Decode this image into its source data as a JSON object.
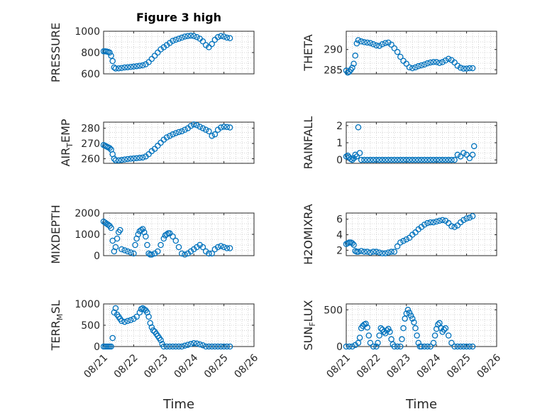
{
  "title": "Figure 3 high",
  "marker_color": "#0072BD",
  "xtick_labels": [
    "08/21",
    "08/22",
    "08/23",
    "08/24",
    "08/25",
    "08/26"
  ],
  "xlabel": "Time",
  "chart_data": [
    {
      "type": "scatter",
      "ylabel": "PRESSURE",
      "yticks": [
        "600",
        "800",
        "1000"
      ],
      "ylim": [
        600,
        1000
      ],
      "xlim": [
        0,
        5
      ],
      "x": [
        0.0,
        0.05,
        0.1,
        0.15,
        0.2,
        0.25,
        0.3,
        0.35,
        0.4,
        0.5,
        0.6,
        0.7,
        0.8,
        0.9,
        1.0,
        1.1,
        1.2,
        1.3,
        1.4,
        1.5,
        1.6,
        1.7,
        1.8,
        1.9,
        2.0,
        2.1,
        2.2,
        2.3,
        2.4,
        2.5,
        2.6,
        2.7,
        2.8,
        2.9,
        3.0,
        3.1,
        3.2,
        3.3,
        3.4,
        3.5,
        3.6,
        3.7,
        3.8,
        3.9,
        4.0,
        4.1,
        4.2
      ],
      "y": [
        812,
        812,
        810,
        806,
        800,
        770,
        720,
        660,
        650,
        652,
        655,
        660,
        662,
        665,
        668,
        672,
        676,
        680,
        690,
        710,
        740,
        770,
        800,
        830,
        850,
        870,
        890,
        910,
        920,
        930,
        940,
        950,
        955,
        958,
        955,
        945,
        930,
        905,
        870,
        850,
        880,
        920,
        945,
        955,
        950,
        940,
        935
      ]
    },
    {
      "type": "scatter",
      "ylabel": "THETA",
      "yticks": [
        "285",
        "290"
      ],
      "ylim": [
        284,
        294.5
      ],
      "xlim": [
        0,
        5
      ],
      "x": [
        0.0,
        0.05,
        0.1,
        0.15,
        0.2,
        0.25,
        0.3,
        0.35,
        0.4,
        0.5,
        0.6,
        0.7,
        0.8,
        0.9,
        1.0,
        1.1,
        1.2,
        1.3,
        1.4,
        1.5,
        1.6,
        1.7,
        1.8,
        1.9,
        2.0,
        2.1,
        2.2,
        2.3,
        2.4,
        2.5,
        2.6,
        2.7,
        2.8,
        2.9,
        3.0,
        3.1,
        3.2,
        3.3,
        3.4,
        3.5,
        3.6,
        3.7,
        3.8,
        3.9,
        4.0,
        4.1,
        4.2
      ],
      "y": [
        284.8,
        284.3,
        284.5,
        285.0,
        285.5,
        286.5,
        288.5,
        291.5,
        292.3,
        292.0,
        291.8,
        291.7,
        291.6,
        291.3,
        291.0,
        290.9,
        291.3,
        291.6,
        291.7,
        291.2,
        290.3,
        289.4,
        288.2,
        287.2,
        286.5,
        285.6,
        285.4,
        285.6,
        285.9,
        286.1,
        286.3,
        286.6,
        286.8,
        286.9,
        286.9,
        286.7,
        286.9,
        287.3,
        287.7,
        287.4,
        286.8,
        286.0,
        285.5,
        285.3,
        285.3,
        285.4,
        285.4
      ]
    },
    {
      "type": "scatter",
      "ylabel": "AIR_TEMP",
      "yticks": [
        "260",
        "270",
        "280"
      ],
      "ylim": [
        257,
        284
      ],
      "xlim": [
        0,
        5
      ],
      "x": [
        0.0,
        0.05,
        0.1,
        0.15,
        0.2,
        0.25,
        0.3,
        0.35,
        0.4,
        0.5,
        0.6,
        0.7,
        0.8,
        0.9,
        1.0,
        1.1,
        1.2,
        1.3,
        1.4,
        1.5,
        1.6,
        1.7,
        1.8,
        1.9,
        2.0,
        2.1,
        2.2,
        2.3,
        2.4,
        2.5,
        2.6,
        2.7,
        2.8,
        2.9,
        3.0,
        3.1,
        3.2,
        3.3,
        3.4,
        3.5,
        3.6,
        3.7,
        3.8,
        3.9,
        4.0,
        4.1,
        4.2
      ],
      "y": [
        269,
        268.5,
        268,
        267.5,
        267,
        266,
        263,
        260,
        259,
        259,
        259.2,
        259.5,
        259.8,
        260,
        260.2,
        260.4,
        260.6,
        260.8,
        261.5,
        263,
        265,
        266.5,
        268.5,
        270.5,
        272.5,
        274,
        275,
        276,
        276.8,
        277.5,
        278,
        279,
        280,
        281.5,
        282.5,
        282,
        281,
        280,
        279,
        278,
        275,
        276,
        279,
        280.5,
        281,
        280.8,
        280.5
      ]
    },
    {
      "type": "scatter",
      "ylabel": "RAINFALL",
      "yticks": [
        "0",
        "1",
        "2"
      ],
      "ylim": [
        -0.2,
        2.2
      ],
      "xlim": [
        0,
        5
      ],
      "x": [
        0.0,
        0.05,
        0.1,
        0.15,
        0.2,
        0.25,
        0.3,
        0.35,
        0.4,
        0.45,
        0.5,
        0.6,
        0.7,
        0.8,
        0.9,
        1.0,
        1.1,
        1.2,
        1.3,
        1.4,
        1.5,
        1.6,
        1.7,
        1.8,
        1.9,
        2.0,
        2.1,
        2.2,
        2.3,
        2.4,
        2.5,
        2.6,
        2.7,
        2.8,
        2.9,
        3.0,
        3.1,
        3.2,
        3.3,
        3.4,
        3.5,
        3.6,
        3.7,
        3.8,
        3.9,
        4.0,
        4.1,
        4.2,
        4.25
      ],
      "y": [
        0.2,
        0.25,
        0.15,
        0.05,
        0,
        0.1,
        0.3,
        0.2,
        1.9,
        0.4,
        0,
        0,
        0,
        0,
        0,
        0,
        0,
        0,
        0,
        0,
        0,
        0,
        0,
        0,
        0,
        0,
        0,
        0,
        0,
        0,
        0,
        0,
        0,
        0,
        0,
        0,
        0,
        0,
        0,
        0,
        0,
        0,
        0.3,
        0.2,
        0.4,
        0.3,
        0.1,
        0.3,
        0.8
      ]
    },
    {
      "type": "scatter",
      "ylabel": "MIXDEPTH",
      "yticks": [
        "0",
        "1000",
        "2000"
      ],
      "ylim": [
        0,
        2000
      ],
      "xlim": [
        0,
        5
      ],
      "x": [
        0.0,
        0.05,
        0.1,
        0.15,
        0.2,
        0.25,
        0.3,
        0.35,
        0.4,
        0.45,
        0.5,
        0.55,
        0.6,
        0.7,
        0.8,
        0.9,
        1.0,
        1.05,
        1.1,
        1.15,
        1.2,
        1.25,
        1.3,
        1.35,
        1.4,
        1.45,
        1.5,
        1.55,
        1.6,
        1.7,
        1.8,
        1.9,
        2.0,
        2.05,
        2.1,
        2.15,
        2.2,
        2.3,
        2.4,
        2.5,
        2.6,
        2.7,
        2.8,
        2.9,
        3.0,
        3.1,
        3.2,
        3.3,
        3.4,
        3.5,
        3.6,
        3.7,
        3.8,
        3.9,
        4.0,
        4.1,
        4.2
      ],
      "y": [
        1600,
        1550,
        1500,
        1450,
        1400,
        1300,
        700,
        200,
        400,
        800,
        1100,
        1200,
        300,
        250,
        200,
        150,
        100,
        500,
        800,
        1000,
        1150,
        1200,
        1250,
        1100,
        900,
        500,
        100,
        50,
        50,
        100,
        200,
        500,
        800,
        950,
        1000,
        1050,
        1050,
        900,
        700,
        400,
        100,
        50,
        100,
        200,
        300,
        400,
        500,
        400,
        200,
        100,
        100,
        300,
        400,
        450,
        400,
        350,
        350
      ]
    },
    {
      "type": "scatter",
      "ylabel": "H2OMIXRA",
      "yticks": [
        "2",
        "4",
        "6"
      ],
      "ylim": [
        1.3,
        6.8
      ],
      "xlim": [
        0,
        5
      ],
      "x": [
        0.0,
        0.05,
        0.1,
        0.15,
        0.2,
        0.25,
        0.3,
        0.35,
        0.4,
        0.5,
        0.6,
        0.7,
        0.8,
        0.9,
        1.0,
        1.1,
        1.2,
        1.3,
        1.4,
        1.5,
        1.6,
        1.7,
        1.8,
        1.9,
        2.0,
        2.1,
        2.2,
        2.3,
        2.4,
        2.5,
        2.6,
        2.7,
        2.8,
        2.9,
        3.0,
        3.1,
        3.2,
        3.3,
        3.4,
        3.5,
        3.6,
        3.7,
        3.8,
        3.9,
        4.0,
        4.1,
        4.2
      ],
      "y": [
        2.8,
        2.9,
        3.0,
        3.0,
        2.9,
        2.7,
        1.9,
        1.8,
        1.8,
        1.9,
        1.8,
        1.8,
        1.7,
        1.8,
        1.8,
        1.7,
        1.6,
        1.6,
        1.7,
        1.8,
        1.8,
        2.5,
        3.0,
        3.2,
        3.4,
        3.6,
        4.0,
        4.3,
        4.7,
        5.0,
        5.3,
        5.5,
        5.6,
        5.6,
        5.7,
        5.8,
        5.9,
        5.8,
        5.5,
        5.1,
        5.0,
        5.2,
        5.6,
        5.9,
        6.1,
        6.2,
        6.4
      ]
    },
    {
      "type": "scatter",
      "ylabel": "TERR_MSL",
      "yticks": [
        "0",
        "500",
        "1000"
      ],
      "ylim": [
        0,
        1000
      ],
      "xlim": [
        0,
        5
      ],
      "x": [
        0.0,
        0.05,
        0.1,
        0.15,
        0.2,
        0.25,
        0.3,
        0.35,
        0.4,
        0.45,
        0.5,
        0.55,
        0.6,
        0.7,
        0.8,
        0.9,
        1.0,
        1.1,
        1.2,
        1.25,
        1.3,
        1.35,
        1.4,
        1.45,
        1.5,
        1.55,
        1.6,
        1.65,
        1.7,
        1.75,
        1.8,
        1.85,
        1.9,
        1.95,
        2.0,
        2.1,
        2.2,
        2.3,
        2.4,
        2.5,
        2.6,
        2.7,
        2.8,
        2.9,
        3.0,
        3.1,
        3.2,
        3.3,
        3.4,
        3.5,
        3.6,
        3.7,
        3.8,
        3.9,
        4.0,
        4.1,
        4.2
      ],
      "y": [
        0,
        0,
        0,
        0,
        0,
        0,
        200,
        800,
        900,
        750,
        700,
        650,
        600,
        580,
        600,
        620,
        650,
        700,
        800,
        880,
        900,
        870,
        850,
        800,
        700,
        550,
        450,
        380,
        350,
        300,
        250,
        200,
        150,
        60,
        0,
        0,
        0,
        0,
        0,
        0,
        0,
        20,
        40,
        60,
        80,
        70,
        50,
        30,
        0,
        0,
        0,
        0,
        0,
        0,
        0,
        0,
        0
      ]
    },
    {
      "type": "scatter",
      "ylabel": "SUN_FLUX",
      "yticks": [
        "0",
        "500"
      ],
      "ylim": [
        0,
        580
      ],
      "xlim": [
        0,
        5
      ],
      "x": [
        0.0,
        0.1,
        0.2,
        0.3,
        0.4,
        0.45,
        0.5,
        0.55,
        0.6,
        0.65,
        0.7,
        0.75,
        0.8,
        0.9,
        1.0,
        1.05,
        1.1,
        1.15,
        1.2,
        1.25,
        1.3,
        1.35,
        1.4,
        1.45,
        1.5,
        1.55,
        1.6,
        1.7,
        1.8,
        1.85,
        1.9,
        1.95,
        2.0,
        2.05,
        2.1,
        2.15,
        2.2,
        2.25,
        2.3,
        2.35,
        2.4,
        2.45,
        2.5,
        2.6,
        2.7,
        2.8,
        2.9,
        2.95,
        3.0,
        3.05,
        3.1,
        3.15,
        3.2,
        3.25,
        3.3,
        3.4,
        3.5,
        3.6,
        3.7,
        3.8,
        3.9,
        4.0,
        4.1,
        4.2
      ],
      "y": [
        0,
        0,
        0,
        20,
        50,
        120,
        250,
        280,
        300,
        310,
        260,
        150,
        50,
        0,
        0,
        50,
        150,
        250,
        230,
        200,
        180,
        220,
        240,
        200,
        100,
        30,
        0,
        0,
        0,
        100,
        250,
        380,
        450,
        500,
        460,
        420,
        380,
        330,
        250,
        150,
        50,
        0,
        0,
        0,
        0,
        0,
        50,
        150,
        240,
        300,
        320,
        250,
        200,
        230,
        250,
        150,
        50,
        0,
        0,
        0,
        0,
        0,
        0,
        0
      ]
    }
  ]
}
